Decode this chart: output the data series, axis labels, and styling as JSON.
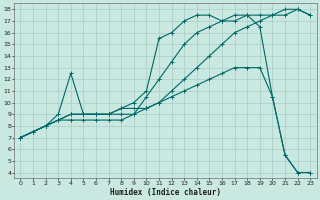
{
  "xlabel": "Humidex (Indice chaleur)",
  "bg_color": "#c8e8e0",
  "grid_color": "#a8ccc8",
  "line_color": "#006868",
  "xlim": [
    -0.5,
    23.5
  ],
  "ylim": [
    3.5,
    18.5
  ],
  "xticks": [
    0,
    1,
    2,
    3,
    4,
    5,
    6,
    7,
    8,
    9,
    10,
    11,
    12,
    13,
    14,
    15,
    16,
    17,
    18,
    19,
    20,
    21,
    22,
    23
  ],
  "yticks": [
    4,
    5,
    6,
    7,
    8,
    9,
    10,
    11,
    12,
    13,
    14,
    15,
    16,
    17,
    18
  ],
  "line1_x": [
    0,
    1,
    2,
    3,
    4,
    5,
    6,
    7,
    8,
    9,
    10,
    11,
    12,
    13,
    14,
    15,
    16,
    17,
    18,
    19,
    20,
    21,
    22,
    23
  ],
  "line1_y": [
    7,
    7.5,
    8,
    8.5,
    8.5,
    8.5,
    8.5,
    8.5,
    8.5,
    9,
    10.5,
    12,
    13.5,
    15,
    16,
    16.5,
    17,
    17.5,
    17.5,
    17.5,
    17.5,
    17.5,
    18,
    17.5
  ],
  "line2_x": [
    0,
    1,
    2,
    3,
    4,
    5,
    6,
    7,
    8,
    9,
    10,
    11,
    12,
    13,
    14,
    15,
    16,
    17,
    18,
    19,
    20,
    21,
    22,
    23
  ],
  "line2_y": [
    7,
    7.5,
    8,
    8.5,
    9,
    9,
    9,
    9,
    9,
    9,
    9.5,
    10,
    10.5,
    11,
    11.5,
    12,
    12.5,
    13,
    13,
    13,
    10.5,
    5.5,
    4,
    4
  ],
  "line3_x": [
    0,
    2,
    3,
    4,
    5,
    6,
    7,
    8,
    9,
    10,
    11,
    12,
    13,
    14,
    15,
    16,
    17,
    18,
    19,
    20,
    21,
    22,
    23
  ],
  "line3_y": [
    7,
    8,
    9,
    12.5,
    9,
    9,
    9,
    9.5,
    10,
    11,
    15.5,
    16,
    17,
    17.5,
    17.5,
    17,
    17,
    17.5,
    16.5,
    10.5,
    5.5,
    4,
    4
  ],
  "line4_x": [
    0,
    2,
    3,
    4,
    5,
    6,
    7,
    8,
    9,
    10,
    11,
    12,
    13,
    14,
    15,
    16,
    17,
    18,
    19,
    20,
    21,
    22,
    23
  ],
  "line4_y": [
    7,
    8,
    8.5,
    9,
    9,
    9,
    9,
    9.5,
    9.5,
    9.5,
    10,
    11,
    12,
    13,
    14,
    15,
    16,
    16.5,
    17,
    17.5,
    18,
    18,
    17.5
  ]
}
